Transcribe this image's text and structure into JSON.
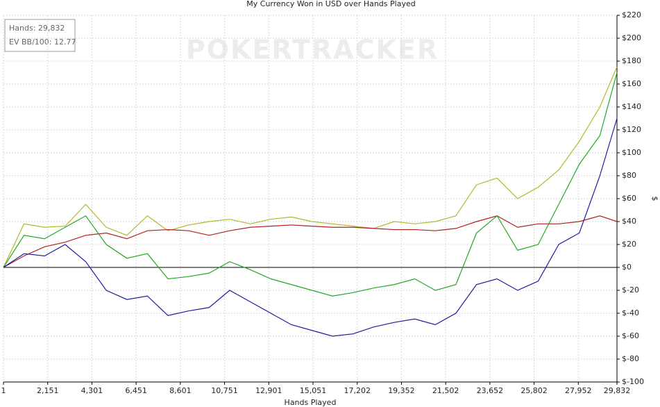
{
  "chart_data": {
    "type": "line",
    "title": "My Currency Won in USD over Hands Played",
    "x_label": "Hands Played",
    "y_label": "$",
    "watermark": "POKERTRACKER",
    "info": [
      "Hands: 29,832",
      "EV BB/100: 12.77"
    ],
    "x": [
      1,
      1000,
      2000,
      3000,
      4000,
      5000,
      6000,
      7000,
      8000,
      9000,
      10000,
      11000,
      12000,
      13000,
      14000,
      15000,
      16000,
      17000,
      18000,
      19000,
      20000,
      21000,
      22000,
      23000,
      24000,
      25000,
      26000,
      27000,
      28000,
      29000,
      29832
    ],
    "series": [
      {
        "color": "#b5b52a",
        "values": [
          0,
          38,
          35,
          36,
          55,
          35,
          28,
          45,
          32,
          37,
          40,
          42,
          38,
          42,
          44,
          40,
          38,
          36,
          34,
          40,
          38,
          40,
          45,
          72,
          78,
          60,
          70,
          85,
          110,
          140,
          175
        ]
      },
      {
        "color": "#b02020",
        "values": [
          0,
          10,
          18,
          22,
          28,
          30,
          25,
          32,
          33,
          32,
          28,
          32,
          35,
          36,
          37,
          36,
          35,
          35,
          34,
          33,
          33,
          32,
          34,
          40,
          45,
          35,
          38,
          38,
          40,
          45,
          40
        ]
      },
      {
        "color": "#22a822",
        "values": [
          0,
          28,
          25,
          35,
          45,
          20,
          8,
          12,
          -10,
          -8,
          -5,
          5,
          -2,
          -10,
          -15,
          -20,
          -25,
          -22,
          -18,
          -15,
          -10,
          -20,
          -15,
          30,
          45,
          15,
          20,
          55,
          90,
          115,
          170
        ]
      },
      {
        "color": "#1c1ca0",
        "values": [
          0,
          12,
          10,
          20,
          5,
          -20,
          -28,
          -25,
          -42,
          -38,
          -35,
          -20,
          -30,
          -40,
          -50,
          -55,
          -60,
          -58,
          -52,
          -48,
          -45,
          -50,
          -40,
          -15,
          -10,
          -20,
          -12,
          20,
          30,
          80,
          130
        ]
      }
    ],
    "xlim": [
      1,
      29832
    ],
    "xticks": [
      1,
      {
        "value": 2151,
        "label": "2,151"
      },
      {
        "value": 4301,
        "label": "4,301"
      },
      {
        "value": 6451,
        "label": "6,451"
      },
      {
        "value": 8601,
        "label": "8,601"
      },
      {
        "value": 10751,
        "label": "10,751"
      },
      {
        "value": 12901,
        "label": "12,901"
      },
      {
        "value": 15051,
        "label": "15,051"
      },
      {
        "value": 17202,
        "label": "17,202"
      },
      {
        "value": 19352,
        "label": "19,352"
      },
      {
        "value": 21502,
        "label": "21,502"
      },
      {
        "value": 23652,
        "label": "23,652"
      },
      {
        "value": 25802,
        "label": "25,802"
      },
      {
        "value": 27952,
        "label": "27,952"
      },
      {
        "value": 29832,
        "label": "29,832"
      }
    ],
    "ylim": [
      -100,
      220
    ],
    "yticks": [
      {
        "value": 220,
        "label": "$220"
      },
      {
        "value": 200,
        "label": "$200"
      },
      {
        "value": 180,
        "label": "$180"
      },
      {
        "value": 160,
        "label": "$160"
      },
      {
        "value": 140,
        "label": "$140"
      },
      {
        "value": 120,
        "label": "$120"
      },
      {
        "value": 100,
        "label": "$100"
      },
      {
        "value": 80,
        "label": "$80"
      },
      {
        "value": 60,
        "label": "$60"
      },
      {
        "value": 40,
        "label": "$40"
      },
      {
        "value": 20,
        "label": "$20"
      },
      {
        "value": 0,
        "label": "$0"
      },
      {
        "value": -20,
        "label": "$-20"
      },
      {
        "value": -40,
        "label": "$-40"
      },
      {
        "value": -60,
        "label": "$-60"
      },
      {
        "value": -80,
        "label": "$-80"
      },
      {
        "value": -100,
        "label": "$-100"
      }
    ],
    "grid": true,
    "zero_line": true
  }
}
